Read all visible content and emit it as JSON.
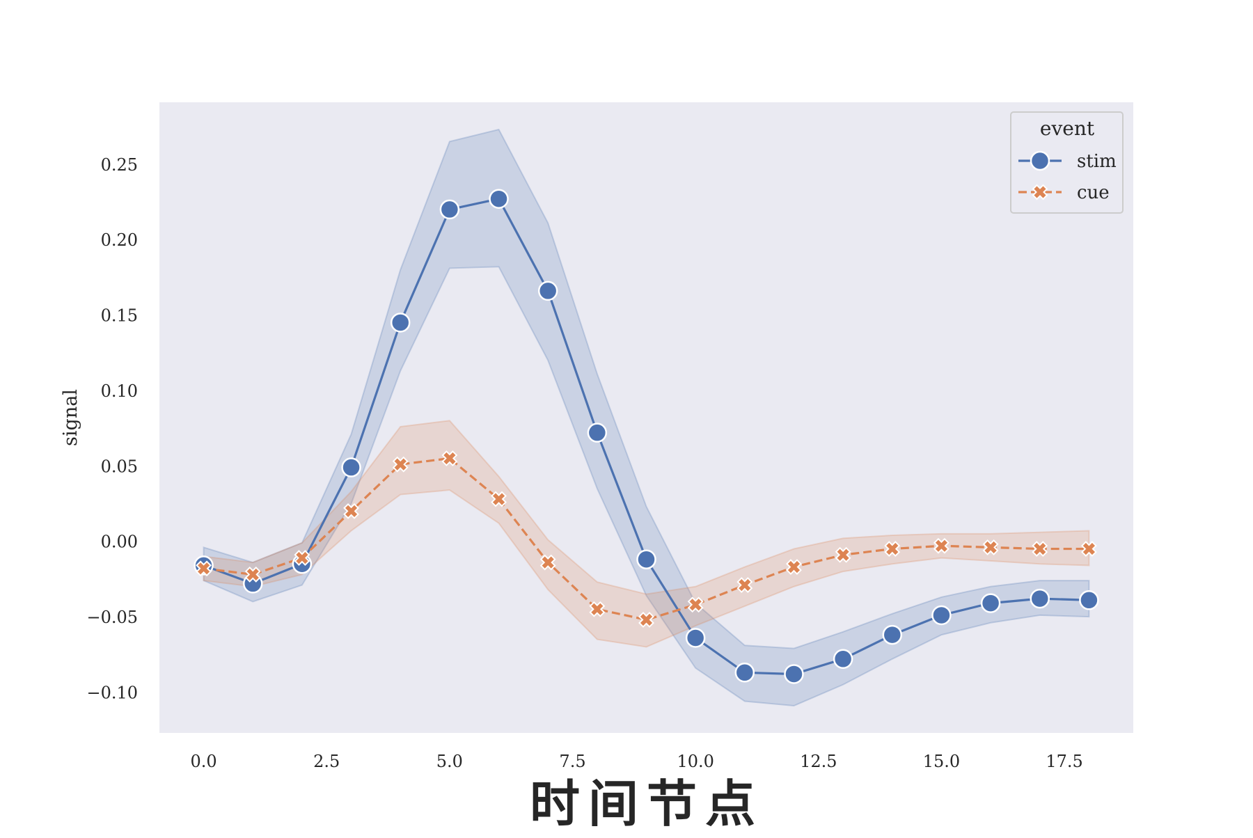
{
  "chart_data": {
    "type": "line",
    "title": "",
    "xlabel": "时间节点",
    "ylabel": "signal",
    "xlim": [
      -0.9,
      18.9
    ],
    "ylim": [
      -0.127,
      0.291
    ],
    "xticks": [
      0.0,
      2.5,
      5.0,
      7.5,
      10.0,
      12.5,
      15.0,
      17.5
    ],
    "xtick_labels": [
      "0.0",
      "2.5",
      "5.0",
      "7.5",
      "10.0",
      "12.5",
      "15.0",
      "17.5"
    ],
    "yticks": [
      -0.1,
      -0.05,
      0.0,
      0.05,
      0.1,
      0.15,
      0.2,
      0.25
    ],
    "ytick_labels": [
      "−0.10",
      "−0.05",
      "0.00",
      "0.05",
      "0.10",
      "0.15",
      "0.20",
      "0.25"
    ],
    "grid": false,
    "background": "#eaeaf2",
    "legend": {
      "title": "event",
      "placement": "top-right"
    },
    "x": [
      0,
      1,
      2,
      3,
      4,
      5,
      6,
      7,
      8,
      9,
      10,
      11,
      12,
      13,
      14,
      15,
      16,
      17,
      18
    ],
    "series": [
      {
        "name": "stim",
        "color": "#4c72b0",
        "marker": "circle",
        "linestyle": "solid",
        "values": [
          -0.016,
          -0.028,
          -0.015,
          0.049,
          0.145,
          0.22,
          0.227,
          0.166,
          0.072,
          -0.012,
          -0.064,
          -0.087,
          -0.088,
          -0.078,
          -0.062,
          -0.049,
          -0.041,
          -0.038,
          -0.039
        ],
        "ci_low": [
          -0.026,
          -0.04,
          -0.029,
          0.025,
          0.113,
          0.181,
          0.182,
          0.12,
          0.035,
          -0.036,
          -0.084,
          -0.106,
          -0.109,
          -0.095,
          -0.078,
          -0.062,
          -0.054,
          -0.049,
          -0.05
        ],
        "ci_high": [
          -0.004,
          -0.014,
          -0.001,
          0.071,
          0.18,
          0.265,
          0.273,
          0.211,
          0.111,
          0.023,
          -0.041,
          -0.069,
          -0.071,
          -0.06,
          -0.048,
          -0.037,
          -0.03,
          -0.026,
          -0.026
        ]
      },
      {
        "name": "cue",
        "color": "#dd8452",
        "marker": "x",
        "linestyle": "dashed",
        "values": [
          -0.018,
          -0.022,
          -0.011,
          0.02,
          0.051,
          0.055,
          0.028,
          -0.014,
          -0.045,
          -0.052,
          -0.042,
          -0.029,
          -0.017,
          -0.009,
          -0.005,
          -0.003,
          -0.004,
          -0.005,
          -0.005
        ],
        "ci_low": [
          -0.026,
          -0.03,
          -0.022,
          0.007,
          0.031,
          0.034,
          0.012,
          -0.032,
          -0.065,
          -0.07,
          -0.056,
          -0.043,
          -0.03,
          -0.02,
          -0.015,
          -0.011,
          -0.013,
          -0.015,
          -0.016
        ],
        "ci_high": [
          -0.01,
          -0.014,
          -0.001,
          0.033,
          0.076,
          0.08,
          0.043,
          0.001,
          -0.027,
          -0.035,
          -0.03,
          -0.017,
          -0.005,
          0.002,
          0.004,
          0.005,
          0.005,
          0.006,
          0.007
        ]
      }
    ]
  }
}
